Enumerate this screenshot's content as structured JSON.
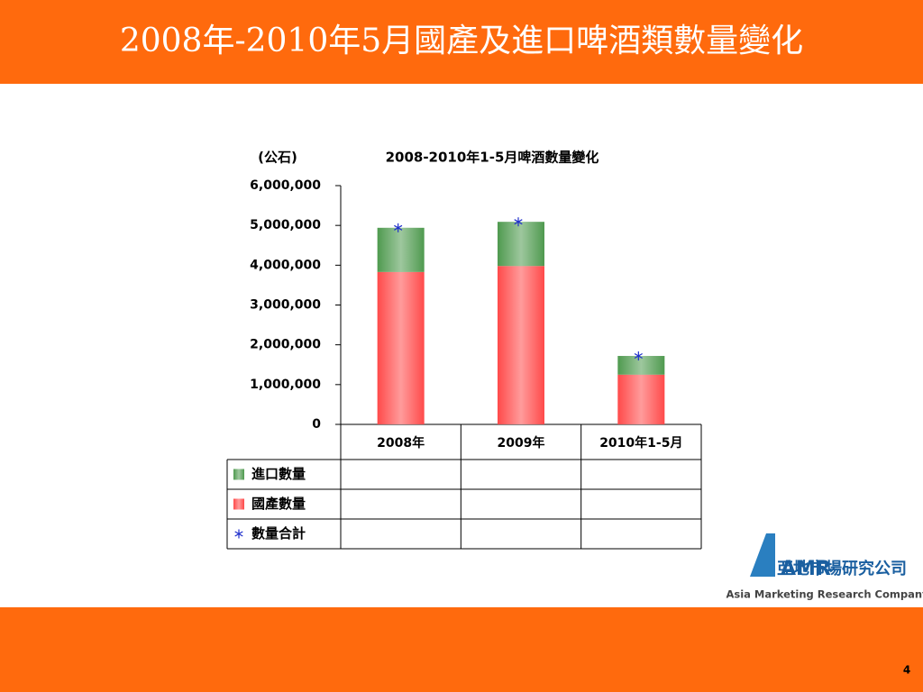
{
  "header": {
    "title": "2008年-2010年5月國產及進口啤酒類數量變化"
  },
  "chart_data": {
    "type": "bar",
    "stacked": true,
    "title": "2008-2010年1-5月啤酒數量變化",
    "unit_label": "(公石)",
    "categories": [
      "2008年",
      "2009年",
      "2010年1-5月"
    ],
    "series": [
      {
        "name": "進口數量",
        "color": "#4f9a4f",
        "values": [
          1110000,
          1110000,
          470000
        ]
      },
      {
        "name": "國產數量",
        "color": "#ff4a4a",
        "values": [
          3830000,
          3980000,
          1250000
        ]
      },
      {
        "name": "數量合計",
        "color": "#1f2fcc",
        "type": "scatter",
        "values": [
          4940000,
          5090000,
          1720000
        ]
      }
    ],
    "ylim": [
      0,
      6000000
    ],
    "yticks": [
      0,
      {
        "value": 1000000,
        "label": "1,000,000"
      },
      {
        "value": 2000000,
        "label": "2,000,000"
      },
      {
        "value": 3000000,
        "label": "3,000,000"
      },
      {
        "value": 4000000,
        "label": "4,000,000"
      },
      {
        "value": 5000000,
        "label": "5,000,000"
      },
      {
        "value": 6000000,
        "label": "6,000,000"
      }
    ],
    "grid": false
  },
  "logo": {
    "mark": "AMR",
    "name": "亞地市場研究公司",
    "tagline": "Asia Marketing Research Company"
  },
  "page_number": 4
}
